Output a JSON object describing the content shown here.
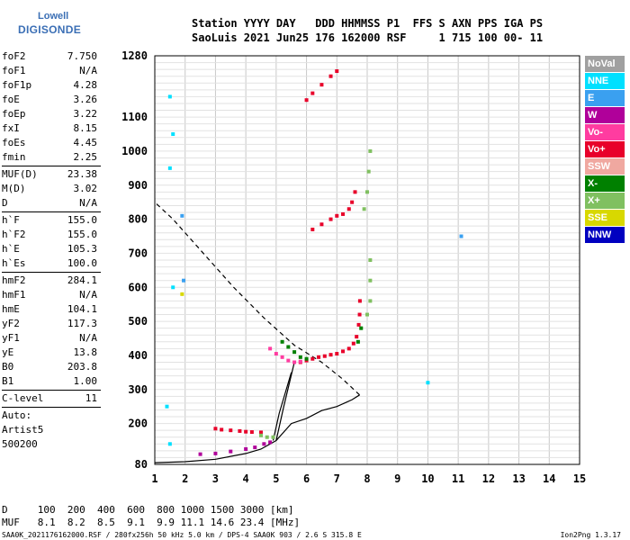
{
  "logo": {
    "line1": "Lowell",
    "line2": "DIGISONDE"
  },
  "header": {
    "line1": "Station YYYY DAY   DDD HHMMSS P1  FFS S AXN PPS IGA PS",
    "line2": "SaoLuis 2021 Jun25 176 162000 RSF     1 715 100 00- 11"
  },
  "params": [
    {
      "k": "foF2",
      "v": "7.750"
    },
    {
      "k": "foF1",
      "v": "N/A"
    },
    {
      "k": "foF1p",
      "v": "4.28"
    },
    {
      "k": "foE",
      "v": "3.26"
    },
    {
      "k": "foEp",
      "v": "3.22"
    },
    {
      "k": "fxI",
      "v": "8.15"
    },
    {
      "k": "foEs",
      "v": "4.45"
    },
    {
      "k": "fmin",
      "v": "2.25"
    },
    {
      "sep": true
    },
    {
      "k": "MUF(D)",
      "v": "23.38"
    },
    {
      "k": "M(D)",
      "v": "3.02"
    },
    {
      "k": "D",
      "v": "N/A"
    },
    {
      "sep": true
    },
    {
      "k": "h`F",
      "v": "155.0"
    },
    {
      "k": "h`F2",
      "v": "155.0"
    },
    {
      "k": "h`E",
      "v": "105.3"
    },
    {
      "k": "h`Es",
      "v": "100.0"
    },
    {
      "sep": true
    },
    {
      "k": "hmF2",
      "v": "284.1"
    },
    {
      "k": "hmF1",
      "v": "N/A"
    },
    {
      "k": "hmE",
      "v": "104.1"
    },
    {
      "k": "yF2",
      "v": "117.3"
    },
    {
      "k": "yF1",
      "v": "N/A"
    },
    {
      "k": "yE",
      "v": "13.8"
    },
    {
      "k": "B0",
      "v": "203.8"
    },
    {
      "k": "B1",
      "v": "1.00"
    },
    {
      "sep": true
    },
    {
      "k": "C-level",
      "v": "11"
    },
    {
      "sep": true
    },
    {
      "t": "Auto:"
    },
    {
      "t": "Artist5"
    },
    {
      "t": "500200"
    }
  ],
  "legend": [
    {
      "label": "NoVal",
      "color": "#a0a0a0"
    },
    {
      "label": "NNE",
      "color": "#00e0ff"
    },
    {
      "label": "E",
      "color": "#3aa0f0"
    },
    {
      "label": "W",
      "color": "#b0009a"
    },
    {
      "label": "Vo-",
      "color": "#ff3ca0"
    },
    {
      "label": "Vo+",
      "color": "#e8002a"
    },
    {
      "label": "SSW",
      "color": "#f0a8a0"
    },
    {
      "label": "X-",
      "color": "#008000"
    },
    {
      "label": "X+",
      "color": "#80c060"
    },
    {
      "label": "SSE",
      "color": "#d8d800"
    },
    {
      "label": "NNW",
      "color": "#0000c0"
    }
  ],
  "footer": {
    "line1": "D     100  200  400  600  800 1000 1500 3000 [km]",
    "line2": "MUF   8.1  8.2  8.5  9.1  9.9 11.1 14.6 23.4 [MHz]"
  },
  "bottom_text": "SAA0K_2021176162000.RSF / 280fx256h 50 kHz 5.0 km / DPS-4 SAA0K 903 / 2.6 S 315.8 E",
  "version": "Ion2Png 1.3.17",
  "chart_data": {
    "type": "scatter",
    "xlim": [
      1,
      15
    ],
    "ylim": [
      80,
      1280
    ],
    "x_ticks": [
      1,
      2,
      3,
      4,
      5,
      6,
      7,
      8,
      9,
      10,
      11,
      12,
      13,
      14,
      15
    ],
    "y_ticks": [
      80,
      200,
      300,
      400,
      500,
      600,
      700,
      800,
      900,
      1000,
      1100,
      1280
    ],
    "x_tick_labels": [
      "1",
      "2",
      "3",
      "4",
      "5",
      "6",
      "7",
      "8",
      "9",
      "10",
      "11",
      "12",
      "13",
      "14",
      "15"
    ],
    "y_tick_labels": [
      "80",
      "200",
      "300",
      "400",
      "500",
      "600",
      "700",
      "800",
      "900",
      "1000",
      "1100",
      "1280"
    ],
    "grid": true,
    "profile_curve": [
      [
        1.0,
        85
      ],
      [
        2.0,
        88
      ],
      [
        3.0,
        95
      ],
      [
        4.0,
        112
      ],
      [
        4.5,
        125
      ],
      [
        5.0,
        150
      ],
      [
        5.5,
        200
      ],
      [
        6.0,
        215
      ],
      [
        6.5,
        238
      ],
      [
        7.0,
        250
      ],
      [
        7.5,
        270
      ],
      [
        7.75,
        284
      ],
      [
        7.2,
        330
      ],
      [
        6.5,
        380
      ],
      [
        5.6,
        430
      ],
      [
        4.6,
        510
      ],
      [
        3.6,
        600
      ],
      [
        2.6,
        700
      ],
      [
        1.6,
        800
      ],
      [
        1.0,
        850
      ]
    ],
    "profile_lines": [
      [
        [
          5.0,
          150
        ],
        [
          5.25,
          250
        ],
        [
          5.6,
          380
        ]
      ],
      [
        [
          4.9,
          150
        ],
        [
          5.1,
          230
        ],
        [
          5.5,
          350
        ]
      ]
    ],
    "scatter_series": [
      {
        "name": "Vo+",
        "color": "#e8002a",
        "points": [
          [
            5.8,
            380
          ],
          [
            6.0,
            385
          ],
          [
            6.2,
            390
          ],
          [
            6.4,
            395
          ],
          [
            6.6,
            398
          ],
          [
            6.8,
            402
          ],
          [
            7.0,
            405
          ],
          [
            7.2,
            412
          ],
          [
            7.4,
            420
          ],
          [
            7.55,
            435
          ],
          [
            7.65,
            455
          ],
          [
            7.72,
            490
          ],
          [
            7.75,
            520
          ],
          [
            7.76,
            560
          ],
          [
            6.2,
            770
          ],
          [
            6.5,
            785
          ],
          [
            6.8,
            800
          ],
          [
            7.0,
            810
          ],
          [
            7.2,
            815
          ],
          [
            7.4,
            830
          ],
          [
            7.5,
            850
          ],
          [
            7.6,
            880
          ],
          [
            6.0,
            1150
          ],
          [
            6.2,
            1170
          ],
          [
            6.5,
            1195
          ],
          [
            6.8,
            1220
          ],
          [
            7.0,
            1235
          ],
          [
            3.0,
            185
          ],
          [
            3.2,
            182
          ],
          [
            3.5,
            180
          ],
          [
            3.8,
            178
          ],
          [
            4.0,
            176
          ],
          [
            4.2,
            175
          ],
          [
            4.5,
            174
          ]
        ]
      },
      {
        "name": "Vo-",
        "color": "#ff3ca0",
        "points": [
          [
            4.8,
            420
          ],
          [
            5.0,
            405
          ],
          [
            5.2,
            395
          ],
          [
            5.4,
            385
          ],
          [
            5.6,
            380
          ],
          [
            5.8,
            382
          ]
        ]
      },
      {
        "name": "X-",
        "color": "#008000",
        "points": [
          [
            5.2,
            440
          ],
          [
            5.4,
            425
          ],
          [
            5.6,
            410
          ],
          [
            5.8,
            395
          ],
          [
            6.0,
            390
          ],
          [
            7.7,
            440
          ],
          [
            7.8,
            480
          ]
        ]
      },
      {
        "name": "X+",
        "color": "#80c060",
        "points": [
          [
            7.9,
            830
          ],
          [
            8.0,
            880
          ],
          [
            8.05,
            940
          ],
          [
            8.1,
            1000
          ],
          [
            8.0,
            520
          ],
          [
            8.1,
            560
          ],
          [
            8.1,
            620
          ],
          [
            8.1,
            680
          ],
          [
            4.5,
            165
          ],
          [
            4.7,
            160
          ],
          [
            4.9,
            160
          ]
        ]
      },
      {
        "name": "W",
        "color": "#b0009a",
        "points": [
          [
            2.5,
            110
          ],
          [
            3.0,
            112
          ],
          [
            3.5,
            118
          ],
          [
            4.0,
            125
          ],
          [
            4.3,
            130
          ],
          [
            4.6,
            140
          ],
          [
            4.8,
            145
          ]
        ]
      },
      {
        "name": "NNE",
        "color": "#00e0ff",
        "points": [
          [
            1.5,
            1160
          ],
          [
            1.6,
            1050
          ],
          [
            1.5,
            950
          ],
          [
            1.6,
            600
          ],
          [
            1.4,
            250
          ],
          [
            1.5,
            140
          ],
          [
            10.0,
            320
          ]
        ]
      },
      {
        "name": "E",
        "color": "#3aa0f0",
        "points": [
          [
            1.9,
            810
          ],
          [
            1.95,
            620
          ],
          [
            11.1,
            750
          ]
        ]
      },
      {
        "name": "SSE",
        "color": "#d8d800",
        "points": [
          [
            1.9,
            580
          ]
        ]
      }
    ]
  }
}
